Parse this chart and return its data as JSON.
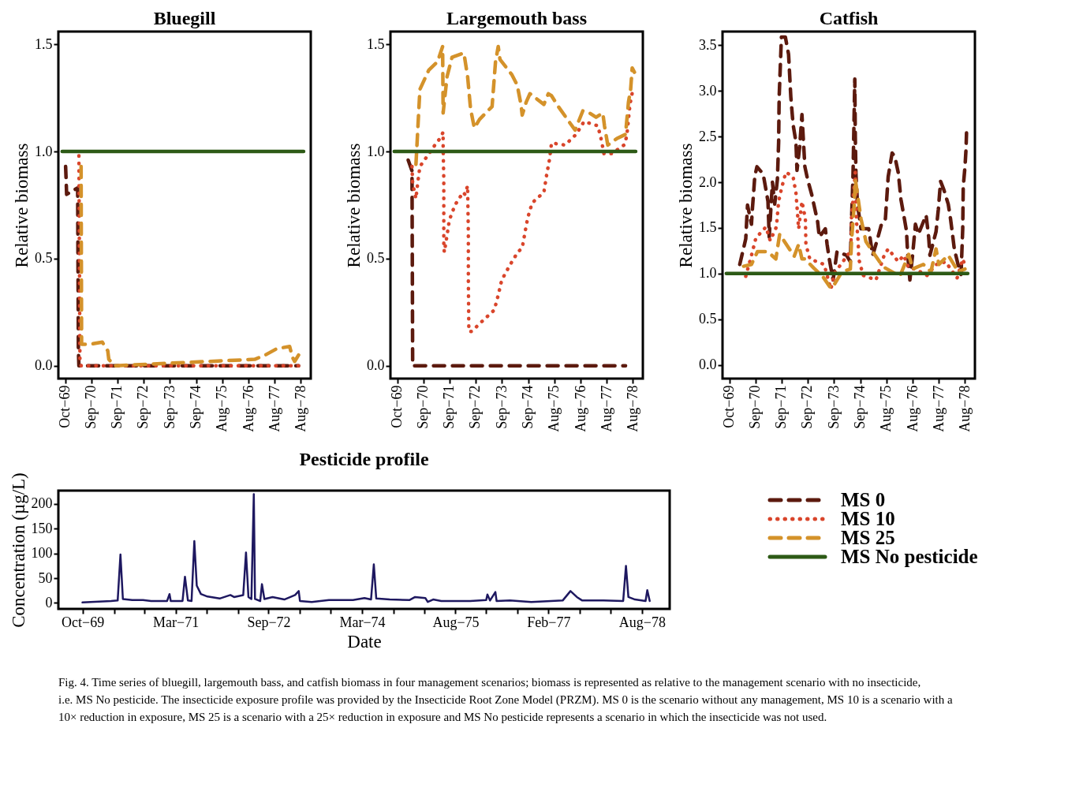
{
  "chart_data": [
    {
      "type": "line",
      "title": "Bluegill",
      "ylabel": "Relative biomass",
      "xlim": [
        "1969-07-01",
        "1978-12-15"
      ],
      "ylim": [
        -0.06,
        1.56
      ],
      "xticks": [
        {
          "value": "1969-10-01",
          "label": "Oct−69"
        },
        {
          "value": "1970-09-22",
          "label": "Sep−70"
        },
        {
          "value": "1971-09-15",
          "label": "Sep−71"
        },
        {
          "value": "1972-09-08",
          "label": "Sep−72"
        },
        {
          "value": "1973-09-01",
          "label": "Sep−73"
        },
        {
          "value": "1974-09-01",
          "label": "Sep−74"
        },
        {
          "value": "1975-08-22",
          "label": "Aug−75"
        },
        {
          "value": "1976-08-15",
          "label": "Aug−76"
        },
        {
          "value": "1977-08-08",
          "label": "Aug−77"
        },
        {
          "value": "1978-08-01",
          "label": "Aug−78"
        }
      ],
      "yticks": [
        {
          "value": 0,
          "label": "0.0"
        },
        {
          "value": 0.5,
          "label": "0.5"
        },
        {
          "value": 1,
          "label": "1.0"
        },
        {
          "value": 1.5,
          "label": "1.5"
        }
      ],
      "grid": false,
      "series": [
        {
          "color": "#5c1a0e",
          "line_style": "dashed",
          "x": [
            "1969-10-08",
            "1969-10-15",
            "1969-10-22",
            "1970-03-22",
            "1970-04-01",
            "1970-04-08",
            "1978-07-01"
          ],
          "values": [
            0.93,
            0.87,
            0.8,
            0.83,
            0.07,
            0,
            0
          ]
        },
        {
          "color": "#d9452b",
          "line_style": "dotted",
          "x": [
            "1970-04-08",
            "1970-04-22",
            "1970-05-08",
            "1978-07-01"
          ],
          "values": [
            0.98,
            0.03,
            0,
            0
          ]
        },
        {
          "color": "#d4922a",
          "line_style": "dashed",
          "x": [
            "1970-05-08",
            "1970-05-15",
            "1970-09-01",
            "1971-02-22",
            "1971-05-08",
            "1971-05-22",
            "1971-08-08",
            "1976-11-08",
            "1977-04-01",
            "1977-09-08",
            "1978-03-01",
            "1978-04-08",
            "1978-05-08",
            "1978-07-01"
          ],
          "values": [
            0.93,
            0.1,
            0.1,
            0.11,
            0.07,
            0.03,
            0,
            0.03,
            0.05,
            0.08,
            0.09,
            0.04,
            0.02,
            0.05
          ]
        },
        {
          "color": "#2d5a16",
          "line_style": "solid",
          "x": [
            "1969-08-22",
            "1978-09-08"
          ],
          "values": [
            1,
            1
          ]
        }
      ]
    },
    {
      "type": "line",
      "title": "Largemouth bass",
      "ylabel": "Relative biomass",
      "xlim": [
        "1969-07-01",
        "1978-12-15"
      ],
      "ylim": [
        -0.06,
        1.56
      ],
      "xticks": [
        {
          "value": "1969-10-01",
          "label": "Oct−69"
        },
        {
          "value": "1970-09-22",
          "label": "Sep−70"
        },
        {
          "value": "1971-09-15",
          "label": "Sep−71"
        },
        {
          "value": "1972-09-08",
          "label": "Sep−72"
        },
        {
          "value": "1973-09-01",
          "label": "Sep−73"
        },
        {
          "value": "1974-09-01",
          "label": "Sep−74"
        },
        {
          "value": "1975-08-22",
          "label": "Aug−75"
        },
        {
          "value": "1976-08-15",
          "label": "Aug−76"
        },
        {
          "value": "1977-08-08",
          "label": "Aug−77"
        },
        {
          "value": "1978-08-01",
          "label": "Aug−78"
        }
      ],
      "yticks": [
        {
          "value": 0,
          "label": "0.0"
        },
        {
          "value": 0.5,
          "label": "0.5"
        },
        {
          "value": 1,
          "label": "1.0"
        },
        {
          "value": 1.5,
          "label": "1.5"
        }
      ],
      "grid": false,
      "series": [
        {
          "color": "#5c1a0e",
          "line_style": "dashed",
          "x": [
            "1970-03-01",
            "1970-04-22",
            "1970-05-01",
            "1978-04-22"
          ],
          "values": [
            0.96,
            0.91,
            0,
            0
          ]
        },
        {
          "color": "#d9452b",
          "line_style": "dotted",
          "x": [
            "1970-04-22",
            "1970-05-01",
            "1970-06-15",
            "1970-07-08",
            "1970-08-08",
            "1971-03-22",
            "1971-05-08",
            "1971-06-22",
            "1971-06-22",
            "1971-07-01",
            "1971-07-01",
            "1971-07-01",
            "1971-07-08",
            "1971-08-15",
            "1971-09-15",
            "1971-12-01",
            "1972-03-22",
            "1972-04-15",
            "1972-05-22",
            "1972-06-01",
            "1972-06-01",
            "1972-06-08",
            "1972-07-15",
            "1972-12-15",
            "1973-05-22",
            "1973-07-15",
            "1973-09-01",
            "1973-12-22",
            "1974-04-08",
            "1974-06-08",
            "1974-07-15",
            "1974-08-22",
            "1974-10-22",
            "1975-04-01",
            "1975-05-08",
            "1975-06-15",
            "1975-07-15",
            "1976-01-15",
            "1976-06-15",
            "1976-10-01",
            "1977-04-08",
            "1977-05-22",
            "1977-07-01",
            "1977-10-15",
            "1978-04-01",
            "1978-05-08",
            "1978-06-22",
            "1978-08-01"
          ],
          "values": [
            0.93,
            0.85,
            0.78,
            0.85,
            0.93,
            1.04,
            1.06,
            1.09,
            1.02,
            0.87,
            0.72,
            0.57,
            0.53,
            0.61,
            0.68,
            0.75,
            0.81,
            0.8,
            0.84,
            0.62,
            0.4,
            0.16,
            0.16,
            0.21,
            0.26,
            0.33,
            0.4,
            0.47,
            0.53,
            0.55,
            0.62,
            0.69,
            0.76,
            0.81,
            0.89,
            0.96,
            1.04,
            1.03,
            1.08,
            1.14,
            1.12,
            1.06,
            0.99,
            0.99,
            1.03,
            1.07,
            1.22,
            1.29
          ]
        },
        {
          "color": "#d4922a",
          "line_style": "dashed",
          "x": [
            "1970-06-15",
            "1970-08-08",
            "1970-12-08",
            "1971-04-08",
            "1971-06-15",
            "1971-06-22",
            "1971-08-15",
            "1971-10-22",
            "1972-04-01",
            "1972-05-22",
            "1972-07-01",
            "1972-08-22",
            "1972-11-01",
            "1973-04-22",
            "1973-06-08",
            "1973-07-15",
            "1973-08-08",
            "1974-01-15",
            "1974-04-01",
            "1974-05-22",
            "1974-06-08",
            "1974-08-01",
            "1974-09-22",
            "1975-04-01",
            "1975-06-01",
            "1975-07-15",
            "1975-10-15",
            "1976-03-08",
            "1976-06-01",
            "1976-09-15",
            "1976-12-15",
            "1977-03-15",
            "1977-06-15",
            "1977-07-08",
            "1977-08-22",
            "1977-12-22",
            "1978-04-22",
            "1978-06-01",
            "1978-07-01",
            "1978-07-22",
            "1978-08-22"
          ],
          "values": [
            0.94,
            1.29,
            1.38,
            1.42,
            1.49,
            1.18,
            1.35,
            1.44,
            1.46,
            1.35,
            1.2,
            1.11,
            1.15,
            1.21,
            1.42,
            1.49,
            1.43,
            1.36,
            1.31,
            1.22,
            1.17,
            1.23,
            1.27,
            1.22,
            1.27,
            1.26,
            1.21,
            1.14,
            1.1,
            1.19,
            1.18,
            1.16,
            1.18,
            1.12,
            1.03,
            1.06,
            1.08,
            1.23,
            1.29,
            1.39,
            1.37
          ]
        },
        {
          "color": "#2d5a16",
          "line_style": "solid",
          "x": [
            "1969-08-22",
            "1978-09-08"
          ],
          "values": [
            1,
            1
          ]
        }
      ]
    },
    {
      "type": "line",
      "title": "Catfish",
      "ylabel": "Relative biomass",
      "xlim": [
        "1969-07-01",
        "1978-12-15"
      ],
      "ylim": [
        -0.15,
        3.65
      ],
      "legend": "bottom",
      "xticks": [
        {
          "value": "1969-10-01",
          "label": "Oct−69"
        },
        {
          "value": "1970-09-22",
          "label": "Sep−70"
        },
        {
          "value": "1971-09-15",
          "label": "Sep−71"
        },
        {
          "value": "1972-09-08",
          "label": "Sep−72"
        },
        {
          "value": "1973-09-01",
          "label": "Sep−73"
        },
        {
          "value": "1974-09-01",
          "label": "Sep−74"
        },
        {
          "value": "1975-08-22",
          "label": "Aug−75"
        },
        {
          "value": "1976-08-15",
          "label": "Aug−76"
        },
        {
          "value": "1977-08-08",
          "label": "Aug−77"
        },
        {
          "value": "1978-08-01",
          "label": "Aug−78"
        }
      ],
      "yticks": [
        {
          "value": 0,
          "label": "0.0"
        },
        {
          "value": 0.5,
          "label": "0.5"
        },
        {
          "value": 1,
          "label": "1.0"
        },
        {
          "value": 1.5,
          "label": "1.5"
        },
        {
          "value": 2,
          "label": "2.0"
        },
        {
          "value": 2.5,
          "label": "2.5"
        },
        {
          "value": 3,
          "label": "3.0"
        },
        {
          "value": 3.5,
          "label": "3.5"
        }
      ],
      "grid": false,
      "series": [
        {
          "name": "MS 0",
          "color": "#5c1a0e",
          "line_style": "dashed",
          "x": [
            "1970-02-22",
            "1970-05-15",
            "1970-06-08",
            "1970-08-01",
            "1970-08-15",
            "1970-09-01",
            "1970-09-15",
            "1970-10-15",
            "1971-01-08",
            "1971-02-15",
            "1971-03-15",
            "1971-04-01",
            "1971-05-15",
            "1971-06-15",
            "1971-07-22",
            "1971-08-08",
            "1971-08-15",
            "1971-09-15",
            "1971-11-08",
            "1971-12-22",
            "1972-01-22",
            "1972-02-22",
            "1972-04-01",
            "1972-04-15",
            "1972-05-22",
            "1972-06-22",
            "1972-08-01",
            "1972-09-08",
            "1972-11-01",
            "1973-01-22",
            "1973-02-15",
            "1973-05-08",
            "1973-06-01",
            "1973-07-01",
            "1973-08-22",
            "1973-10-15",
            "1974-02-22",
            "1974-04-15",
            "1974-05-01",
            "1974-05-22",
            "1974-06-15",
            "1974-06-22",
            "1974-07-01",
            "1974-07-22",
            "1974-09-08",
            "1974-12-22",
            "1975-02-15",
            "1975-04-22",
            "1975-06-15",
            "1975-08-08",
            "1975-09-15",
            "1975-11-08",
            "1975-12-15",
            "1976-02-01",
            "1976-03-08",
            "1976-04-15",
            "1976-05-22",
            "1976-06-08",
            "1976-07-08",
            "1976-08-15",
            "1976-09-22",
            "1976-11-01",
            "1977-02-15",
            "1977-03-22",
            "1977-04-08",
            "1977-07-01",
            "1977-08-01",
            "1977-09-01",
            "1977-10-15",
            "1977-12-15",
            "1978-01-15",
            "1978-02-08",
            "1978-03-08",
            "1978-05-01",
            "1978-06-08",
            "1978-07-01",
            "1978-07-08",
            "1978-08-01",
            "1978-08-15",
            "1978-08-22"
          ],
          "values": [
            1.1,
            1.38,
            1.75,
            1.54,
            1.72,
            1.9,
            2.06,
            2.17,
            2.09,
            1.92,
            1.79,
            1.4,
            2.0,
            1.76,
            2.03,
            2.44,
            2.93,
            3.59,
            3.59,
            3.4,
            2.93,
            2.63,
            2.44,
            2.13,
            2.39,
            2.74,
            2.17,
            2.03,
            1.87,
            1.57,
            1.4,
            1.49,
            1.32,
            1.16,
            0.93,
            1.24,
            1.2,
            1.13,
            1.57,
            2.09,
            3.13,
            2.5,
            2.09,
            1.76,
            1.49,
            1.49,
            1.2,
            1.38,
            1.54,
            1.6,
            2.06,
            2.32,
            2.28,
            2.1,
            1.81,
            1.64,
            1.47,
            1.21,
            0.93,
            1.21,
            1.54,
            1.43,
            1.64,
            1.4,
            1.2,
            1.46,
            1.7,
            2.01,
            1.92,
            1.76,
            1.6,
            1.45,
            1.27,
            1.09,
            0.99,
            1.49,
            1.95,
            2.17,
            2.36,
            2.54
          ]
        },
        {
          "name": "MS 10",
          "color": "#d9452b",
          "line_style": "dotted",
          "x": [
            "1970-05-15",
            "1970-08-08",
            "1970-10-01",
            "1971-02-15",
            "1971-04-15",
            "1971-07-08",
            "1971-08-08",
            "1971-09-22",
            "1971-11-15",
            "1972-02-22",
            "1972-04-01",
            "1972-04-22",
            "1972-05-08",
            "1972-06-22",
            "1972-08-08",
            "1972-08-15",
            "1972-10-08",
            "1973-04-22",
            "1973-07-22",
            "1973-09-15",
            "1974-04-22",
            "1974-05-01",
            "1974-06-22",
            "1974-07-08",
            "1974-08-01",
            "1974-08-08",
            "1974-10-08",
            "1975-04-01",
            "1975-07-22",
            "1975-09-15",
            "1976-02-01",
            "1976-04-15",
            "1976-06-22",
            "1976-09-15",
            "1977-03-01",
            "1977-07-01",
            "1977-08-08",
            "1977-11-08",
            "1978-04-15",
            "1978-07-01",
            "1978-08-15"
          ],
          "values": [
            0.97,
            1.22,
            1.39,
            1.51,
            1.36,
            1.51,
            1.79,
            1.95,
            2.11,
            2.06,
            1.88,
            1.66,
            1.49,
            1.79,
            1.6,
            1.32,
            1.16,
            1.1,
            0.83,
            1.01,
            1.25,
            1.61,
            2.11,
            1.58,
            1.34,
            1.16,
            0.98,
            0.93,
            1.2,
            1.27,
            1.13,
            1.2,
            1.06,
            1.05,
            0.98,
            1.1,
            1.1,
            1.13,
            0.95,
            1.16,
            1.06
          ]
        },
        {
          "name": "MS 25",
          "color": "#d4922a",
          "line_style": "dashed",
          "x": [
            "1970-04-15",
            "1970-08-01",
            "1970-10-22",
            "1971-03-01",
            "1971-04-22",
            "1971-07-01",
            "1971-07-22",
            "1971-08-22",
            "1972-03-08",
            "1972-05-08",
            "1972-06-22",
            "1972-08-01",
            "1972-12-01",
            "1973-04-01",
            "1973-07-22",
            "1973-09-15",
            "1973-12-22",
            "1974-04-15",
            "1974-05-01",
            "1974-06-08",
            "1974-06-22",
            "1974-08-01",
            "1974-09-08",
            "1974-11-15",
            "1975-02-15",
            "1975-06-15",
            "1975-08-08",
            "1976-02-22",
            "1976-06-22",
            "1976-08-15",
            "1977-01-08",
            "1977-04-22",
            "1977-07-01",
            "1977-08-08",
            "1977-12-15",
            "1978-05-01",
            "1978-08-01"
          ],
          "values": [
            1.08,
            1.1,
            1.24,
            1.24,
            1.21,
            1.16,
            1.27,
            1.43,
            1.19,
            1.32,
            1.16,
            1.16,
            1.06,
            0.97,
            0.84,
            0.89,
            1.02,
            1.05,
            1.35,
            1.76,
            2.03,
            1.81,
            1.6,
            1.35,
            1.24,
            1.1,
            1.06,
            0.97,
            1.21,
            1.05,
            1.1,
            1.02,
            1.27,
            1.1,
            1.2,
            1.02,
            1.05
          ]
        },
        {
          "name": "MS No pesticide",
          "color": "#2d5a16",
          "line_style": "solid",
          "x": [
            "1969-08-22",
            "1978-09-08"
          ],
          "values": [
            1,
            1
          ]
        }
      ]
    },
    {
      "type": "line",
      "title": "Pesticide profile",
      "xlabel": "Date",
      "ylabel": "Concentration (µg/L)",
      "xlim": [
        "1969-05-15",
        "1979-01-08"
      ],
      "ylim": [
        -12,
        227
      ],
      "grid": false,
      "xticks": [
        {
          "value": "1969-10-01",
          "label": "Oct−69"
        },
        {
          "value": "1970-04-01",
          "label": null
        },
        {
          "value": "1970-09-22",
          "label": null
        },
        {
          "value": "1971-03-22",
          "label": "Mar−71"
        },
        {
          "value": "1971-09-15",
          "label": null
        },
        {
          "value": "1972-03-15",
          "label": null
        },
        {
          "value": "1972-09-08",
          "label": "Sep−72"
        },
        {
          "value": "1973-03-08",
          "label": null
        },
        {
          "value": "1973-09-01",
          "label": null
        },
        {
          "value": "1974-03-01",
          "label": "Mar−74"
        },
        {
          "value": "1974-09-01",
          "label": null
        },
        {
          "value": "1975-02-22",
          "label": null
        },
        {
          "value": "1975-08-22",
          "label": "Aug−75"
        },
        {
          "value": "1976-02-15",
          "label": null
        },
        {
          "value": "1976-08-15",
          "label": null
        },
        {
          "value": "1977-02-08",
          "label": "Feb−77"
        },
        {
          "value": "1977-08-08",
          "label": null
        },
        {
          "value": "1978-02-01",
          "label": null
        },
        {
          "value": "1978-08-01",
          "label": "Aug−78"
        }
      ],
      "yticks": [
        0,
        50,
        100,
        150,
        200
      ],
      "annotations": [
        "Fig. 4. Time series of bluegill, largemouth bass, and catfish biomass in four management scenarios; biomass is represented as relative to the management scenario with no insecticide, i.e. MS No pesticide. The insecticide exposure profile was provided by the Insecticide Root Zone Model (PRZM). MS 0 is the scenario without any management, MS 10 is a scenario with a 10× reduction in exposure, MS 25 is a scenario with a 25× reduction in exposure and MS No pesticide represents a scenario in which the insecticide was not used."
      ],
      "series": [
        {
          "color": "#1e1860",
          "line_style": "solid",
          "x": [
            "1969-10-01",
            "1970-03-15",
            "1970-04-22",
            "1970-05-08",
            "1970-05-22",
            "1970-07-15",
            "1970-09-15",
            "1970-11-01",
            "1971-02-01",
            "1971-02-15",
            "1971-02-22",
            "1971-05-01",
            "1971-05-15",
            "1971-06-01",
            "1971-06-22",
            "1971-07-08",
            "1971-07-22",
            "1971-08-15",
            "1971-09-22",
            "1971-12-01",
            "1972-02-01",
            "1972-02-22",
            "1972-04-15",
            "1972-05-01",
            "1972-05-15",
            "1972-06-01",
            "1972-06-15",
            "1972-06-22",
            "1972-07-22",
            "1972-08-01",
            "1972-08-15",
            "1972-10-01",
            "1972-12-08",
            "1973-02-08",
            "1973-03-01",
            "1973-03-08",
            "1973-05-15",
            "1973-08-22",
            "1974-01-08",
            "1974-03-15",
            "1974-04-22",
            "1974-05-08",
            "1974-05-22",
            "1974-08-08",
            "1974-12-01",
            "1975-01-01",
            "1975-03-01",
            "1975-03-15",
            "1975-04-15",
            "1975-06-01",
            "1975-07-15",
            "1975-11-15",
            "1976-02-15",
            "1976-02-22",
            "1976-03-08",
            "1976-04-08",
            "1976-04-15",
            "1976-07-01",
            "1976-11-01",
            "1977-05-01",
            "1977-06-15",
            "1977-07-22",
            "1977-08-22",
            "1977-12-22",
            "1978-04-15",
            "1978-05-01",
            "1978-05-15",
            "1978-06-22",
            "1978-08-22",
            "1978-09-01",
            "1978-09-15"
          ],
          "values": [
            1,
            4,
            5,
            98,
            8,
            6,
            6,
            4,
            4,
            18,
            4,
            4,
            53,
            5,
            4,
            125,
            35,
            18,
            13,
            9,
            16,
            12,
            16,
            102,
            12,
            8,
            220,
            8,
            4,
            38,
            8,
            12,
            7,
            16,
            24,
            4,
            2,
            6,
            6,
            10,
            7,
            78,
            9,
            7,
            6,
            12,
            10,
            2,
            7,
            4,
            4,
            4,
            6,
            17,
            5,
            22,
            4,
            5,
            2,
            5,
            24,
            12,
            5,
            5,
            4,
            75,
            12,
            7,
            4,
            26,
            4
          ]
        }
      ]
    }
  ]
}
